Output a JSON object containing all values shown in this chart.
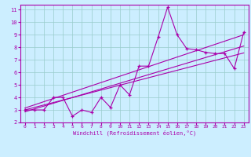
{
  "xlabel": "Windchill (Refroidissement éolien,°C)",
  "x_data": [
    0,
    1,
    2,
    3,
    4,
    5,
    6,
    7,
    8,
    9,
    10,
    11,
    12,
    13,
    14,
    15,
    16,
    17,
    18,
    19,
    20,
    21,
    22,
    23
  ],
  "y_data": [
    3.0,
    3.0,
    3.0,
    4.0,
    4.0,
    2.5,
    3.0,
    2.8,
    4.0,
    3.2,
    5.0,
    4.2,
    6.5,
    6.5,
    8.8,
    11.2,
    9.0,
    7.9,
    7.8,
    7.6,
    7.5,
    7.5,
    6.3,
    9.2
  ],
  "line1_y": [
    2.85,
    8.1
  ],
  "line2_y": [
    3.15,
    9.0
  ],
  "line3_y": [
    3.0,
    7.55
  ],
  "color": "#aa00aa",
  "bg_color": "#cceeff",
  "grid_color": "#99cccc",
  "xlim": [
    -0.5,
    23.5
  ],
  "ylim": [
    2,
    11.4
  ],
  "yticks": [
    2,
    3,
    4,
    5,
    6,
    7,
    8,
    9,
    10,
    11
  ],
  "xticks": [
    0,
    1,
    2,
    3,
    4,
    5,
    6,
    7,
    8,
    9,
    10,
    11,
    12,
    13,
    14,
    15,
    16,
    17,
    18,
    19,
    20,
    21,
    22,
    23
  ]
}
